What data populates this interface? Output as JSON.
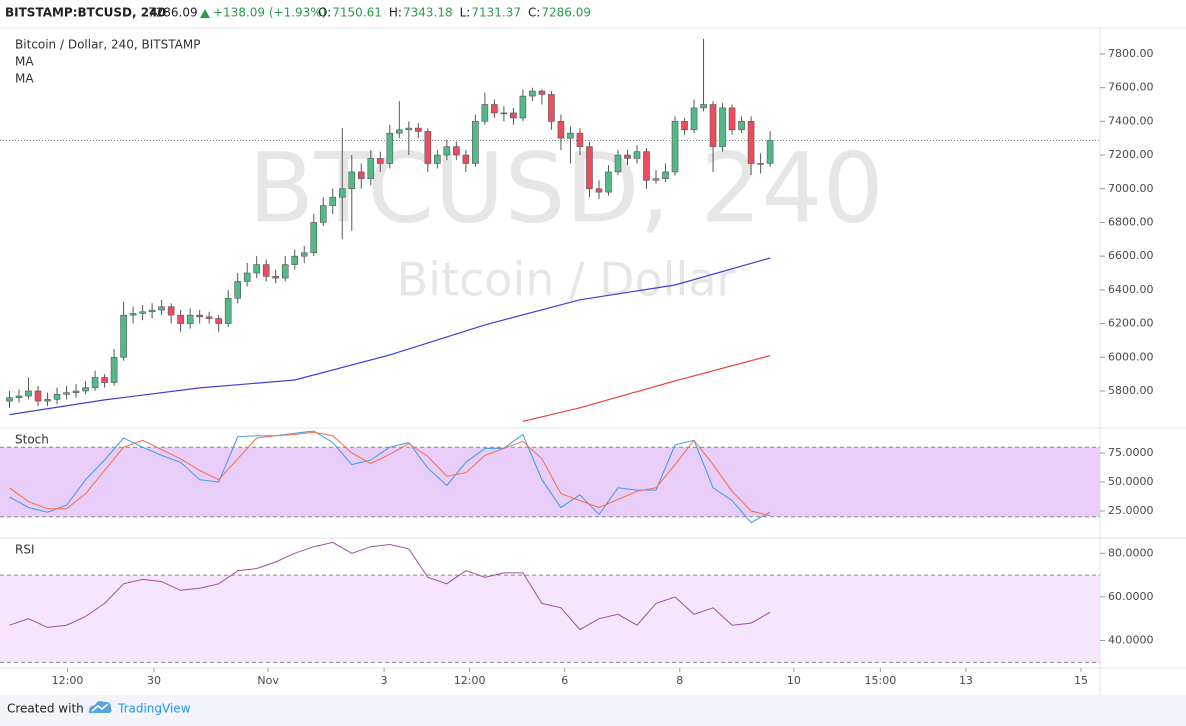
{
  "header": {
    "symbol": "BITSTAMP:BTCUSD, 240",
    "last": "7286.09",
    "change": "+138.09 (+1.93%)",
    "ohlc": [
      {
        "label": "O:",
        "value": "7150.61"
      },
      {
        "label": "H:",
        "value": "7343.18"
      },
      {
        "label": "L:",
        "value": "7131.37"
      },
      {
        "label": "C:",
        "value": "7286.09"
      }
    ]
  },
  "chart_data": [
    {
      "type": "candlestick",
      "title": "Bitcoin / Dollar, 240, BITSTAMP",
      "watermark": [
        "BTCUSD, 240",
        "Bitcoin / Dollar"
      ],
      "up_color": "#53b987",
      "down_color": "#eb4d5c",
      "candles": [
        [
          5740,
          5800,
          5700,
          5760
        ],
        [
          5760,
          5810,
          5730,
          5770
        ],
        [
          5770,
          5880,
          5750,
          5800
        ],
        [
          5800,
          5830,
          5710,
          5740
        ],
        [
          5740,
          5790,
          5710,
          5750
        ],
        [
          5750,
          5820,
          5720,
          5780
        ],
        [
          5780,
          5830,
          5750,
          5790
        ],
        [
          5790,
          5840,
          5760,
          5800
        ],
        [
          5800,
          5860,
          5780,
          5820
        ],
        [
          5820,
          5920,
          5800,
          5880
        ],
        [
          5880,
          5900,
          5820,
          5850
        ],
        [
          5850,
          6050,
          5830,
          6000
        ],
        [
          6000,
          6330,
          5980,
          6250
        ],
        [
          6250,
          6300,
          6200,
          6260
        ],
        [
          6260,
          6310,
          6220,
          6270
        ],
        [
          6270,
          6320,
          6230,
          6280
        ],
        [
          6280,
          6340,
          6250,
          6300
        ],
        [
          6300,
          6320,
          6200,
          6250
        ],
        [
          6250,
          6280,
          6150,
          6200
        ],
        [
          6200,
          6290,
          6170,
          6250
        ],
        [
          6250,
          6280,
          6200,
          6240
        ],
        [
          6240,
          6270,
          6200,
          6230
        ],
        [
          6230,
          6250,
          6150,
          6200
        ],
        [
          6200,
          6400,
          6180,
          6350
        ],
        [
          6350,
          6500,
          6320,
          6450
        ],
        [
          6450,
          6560,
          6420,
          6500
        ],
        [
          6500,
          6600,
          6470,
          6550
        ],
        [
          6550,
          6580,
          6450,
          6480
        ],
        [
          6480,
          6520,
          6440,
          6470
        ],
        [
          6470,
          6600,
          6450,
          6550
        ],
        [
          6550,
          6640,
          6520,
          6600
        ],
        [
          6600,
          6660,
          6560,
          6620
        ],
        [
          6620,
          6850,
          6600,
          6800
        ],
        [
          6800,
          6950,
          6780,
          6900
        ],
        [
          6900,
          7000,
          6850,
          6950
        ],
        [
          6950,
          7360,
          6700,
          7000
        ],
        [
          7000,
          7200,
          6750,
          7100
        ],
        [
          7100,
          7150,
          7000,
          7060
        ],
        [
          7060,
          7230,
          7020,
          7180
        ],
        [
          7180,
          7220,
          7100,
          7150
        ],
        [
          7150,
          7380,
          7120,
          7330
        ],
        [
          7330,
          7520,
          7300,
          7350
        ],
        [
          7350,
          7400,
          7200,
          7360
        ],
        [
          7360,
          7390,
          7300,
          7340
        ],
        [
          7340,
          7360,
          7100,
          7150
        ],
        [
          7150,
          7230,
          7120,
          7200
        ],
        [
          7200,
          7290,
          7170,
          7250
        ],
        [
          7250,
          7280,
          7170,
          7200
        ],
        [
          7200,
          7230,
          7100,
          7150
        ],
        [
          7150,
          7440,
          7130,
          7400
        ],
        [
          7400,
          7570,
          7380,
          7500
        ],
        [
          7500,
          7530,
          7420,
          7450
        ],
        [
          7450,
          7490,
          7400,
          7450
        ],
        [
          7450,
          7480,
          7380,
          7420
        ],
        [
          7420,
          7590,
          7400,
          7550
        ],
        [
          7550,
          7600,
          7520,
          7580
        ],
        [
          7580,
          7590,
          7500,
          7560
        ],
        [
          7560,
          7580,
          7350,
          7400
        ],
        [
          7400,
          7440,
          7230,
          7300
        ],
        [
          7300,
          7370,
          7150,
          7330
        ],
        [
          7330,
          7360,
          7200,
          7250
        ],
        [
          7250,
          7280,
          6950,
          7000
        ],
        [
          7000,
          7050,
          6940,
          6980
        ],
        [
          6980,
          7140,
          6960,
          7100
        ],
        [
          7100,
          7230,
          7080,
          7200
        ],
        [
          7200,
          7230,
          7140,
          7180
        ],
        [
          7180,
          7260,
          7150,
          7220
        ],
        [
          7220,
          7240,
          7000,
          7050
        ],
        [
          7050,
          7110,
          7030,
          7060
        ],
        [
          7060,
          7150,
          7040,
          7100
        ],
        [
          7100,
          7430,
          7080,
          7400
        ],
        [
          7400,
          7420,
          7320,
          7350
        ],
        [
          7350,
          7530,
          7330,
          7480
        ],
        [
          7480,
          7890,
          7460,
          7500
        ],
        [
          7500,
          7520,
          7100,
          7250
        ],
        [
          7250,
          7510,
          7220,
          7480
        ],
        [
          7480,
          7500,
          7320,
          7350
        ],
        [
          7350,
          7430,
          7330,
          7400
        ],
        [
          7400,
          7430,
          7080,
          7150
        ],
        [
          7150,
          7210,
          7090,
          7150.61
        ],
        [
          7150.61,
          7343.18,
          7131.37,
          7286.09
        ]
      ],
      "series": [
        {
          "name": "MA",
          "color": "#3f3fd8",
          "x": [
            0,
            10,
            20,
            30,
            40,
            50,
            60,
            70,
            80
          ],
          "values": [
            5660,
            5747,
            5818,
            5865,
            6014,
            6192,
            6341,
            6429,
            6589
          ]
        },
        {
          "name": "MA",
          "color": "#e8413a",
          "x": [
            54,
            60,
            70,
            80
          ],
          "values": [
            5620,
            5700,
            5860,
            6010
          ]
        }
      ],
      "xlim": [
        -1,
        114.7
      ],
      "xticks": [
        {
          "value": 6.1,
          "label": "12:00"
        },
        {
          "value": 15.2,
          "label": "30"
        },
        {
          "value": 27.2,
          "label": "Nov"
        },
        {
          "value": 39.4,
          "label": "3"
        },
        {
          "value": 48.4,
          "label": "12:00"
        },
        {
          "value": 58.4,
          "label": "6"
        },
        {
          "value": 70.5,
          "label": "8"
        },
        {
          "value": 82.5,
          "label": "10"
        },
        {
          "value": 91.6,
          "label": "15:00"
        },
        {
          "value": 100.6,
          "label": "13"
        },
        {
          "value": 112.7,
          "label": "15"
        }
      ],
      "ylim": [
        5598,
        7954
      ],
      "yticks": [
        {
          "value": 5800,
          "label": "5800.00"
        },
        {
          "value": 6000,
          "label": "6000.00"
        },
        {
          "value": 6200,
          "label": "6200.00"
        },
        {
          "value": 6400,
          "label": "6400.00"
        },
        {
          "value": 6600,
          "label": "6600.00"
        },
        {
          "value": 6800,
          "label": "6800.00"
        },
        {
          "value": 7000,
          "label": "7000.00"
        },
        {
          "value": 7200,
          "label": "7200.00"
        },
        {
          "value": 7400,
          "label": "7400.00"
        },
        {
          "value": 7600,
          "label": "7600.00"
        },
        {
          "value": 7800,
          "label": "7800.00"
        }
      ]
    },
    {
      "type": "line",
      "title": "Stoch",
      "band": [
        20,
        80
      ],
      "band_color": "#e9cdf9",
      "series": [
        {
          "color": "#3d9be9",
          "x": [
            0,
            2,
            4,
            6,
            8,
            10,
            12,
            14,
            16,
            18,
            20,
            22,
            24,
            26,
            28,
            30,
            32,
            34,
            36,
            38,
            40,
            42,
            44,
            46,
            48,
            50,
            52,
            54,
            56,
            58,
            60,
            62,
            64,
            66,
            68,
            70,
            72,
            74,
            76,
            78,
            80
          ],
          "values": [
            37,
            28,
            24,
            30,
            52,
            69,
            88,
            80,
            73,
            67,
            52,
            50,
            89,
            90,
            90,
            92,
            94,
            84,
            65,
            69,
            80,
            84,
            62,
            47,
            67,
            79,
            79,
            91,
            52,
            28,
            39,
            22,
            45,
            43,
            43,
            82,
            86,
            45,
            34,
            15,
            24
          ]
        },
        {
          "color": "#f2704b",
          "x": [
            0,
            2,
            4,
            6,
            8,
            10,
            12,
            14,
            16,
            18,
            20,
            22,
            24,
            26,
            28,
            30,
            32,
            34,
            36,
            38,
            40,
            42,
            44,
            46,
            48,
            50,
            52,
            54,
            56,
            58,
            60,
            62,
            64,
            66,
            68,
            70,
            72,
            74,
            76,
            78,
            80
          ],
          "values": [
            45,
            33,
            27,
            27,
            40,
            60,
            80,
            86,
            78,
            70,
            60,
            52,
            70,
            88,
            90,
            91,
            93,
            90,
            75,
            66,
            74,
            83,
            72,
            55,
            58,
            73,
            79,
            85,
            70,
            40,
            34,
            28,
            35,
            42,
            45,
            65,
            86,
            65,
            42,
            25,
            21
          ]
        }
      ],
      "xlim": [
        -1,
        114.7
      ],
      "ylim": [
        1.7,
        96.6
      ],
      "yticks": [
        {
          "value": 75,
          "label": "75.0000"
        },
        {
          "value": 50,
          "label": "50.0000"
        },
        {
          "value": 25,
          "label": "25.0000"
        }
      ]
    },
    {
      "type": "line",
      "title": "RSI",
      "band": [
        30,
        70
      ],
      "band_color": "#f5e6fc",
      "series": [
        {
          "color": "#a14fa5",
          "x": [
            0,
            2,
            4,
            6,
            8,
            10,
            12,
            14,
            16,
            18,
            20,
            22,
            24,
            26,
            28,
            30,
            32,
            34,
            36,
            38,
            40,
            42,
            44,
            46,
            48,
            50,
            52,
            54,
            56,
            58,
            60,
            62,
            64,
            66,
            68,
            70,
            72,
            74,
            76,
            78,
            80
          ],
          "values": [
            47,
            50,
            46,
            47,
            51,
            57,
            66,
            68,
            67,
            63,
            64,
            66,
            72,
            73,
            76,
            80,
            83,
            85,
            80,
            83,
            84,
            82,
            69,
            66,
            72,
            69,
            71,
            71,
            57,
            55,
            45,
            50,
            52,
            47,
            57,
            60,
            52,
            55,
            47,
            48,
            53
          ]
        }
      ],
      "xlim": [
        -1,
        114.7
      ],
      "ylim": [
        27.4,
        87
      ],
      "yticks": [
        {
          "value": 80,
          "label": "80.0000"
        },
        {
          "value": 60,
          "label": "60.0000"
        },
        {
          "value": 40,
          "label": "40.0000"
        }
      ]
    }
  ],
  "footer": {
    "created": "Created with",
    "brand": "TradingView"
  }
}
